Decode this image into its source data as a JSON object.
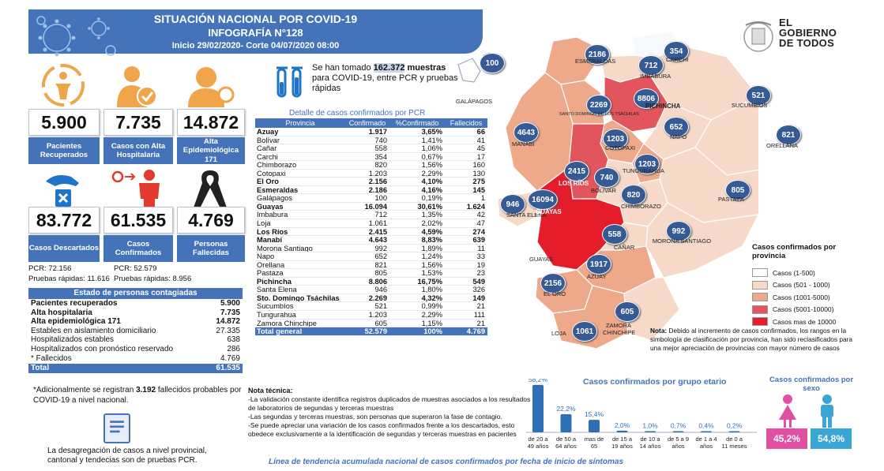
{
  "header": {
    "title": "SITUACIÓN NACIONAL POR  COVID-19",
    "subtitle": "INFOGRAFÍA N°128",
    "date_line": "Inicio 29/02/2020- Corte 04/07/2020 08:00"
  },
  "stats": {
    "recuperados": {
      "value": "5.900",
      "label": "Pacientes Recuperados"
    },
    "alta_hospitalaria": {
      "value": "7.735",
      "label": "Casos con Alta Hospitalaria"
    },
    "alta_epidemiologica": {
      "value": "14.872",
      "label": "Alta Epidemiológica",
      "extra": "171"
    },
    "descartados": {
      "value": "83.772",
      "label": "Casos Descartados"
    },
    "confirmados": {
      "value": "61.535",
      "label": "Casos Confirmados"
    },
    "fallecidos": {
      "value": "4.769",
      "label": "Personas Fallecidas"
    }
  },
  "pcr_lines": {
    "desc_pcr": "PCR: 72.156",
    "conf_pcr": "PCR: 52.579",
    "desc_rapidas": "Pruebas rápidas: 11.616",
    "conf_rapidas": "Pruebas rápidas: 8.956"
  },
  "estado": {
    "title": "Estado de personas contagiadas",
    "rows": [
      {
        "label": "Pacientes recuperados",
        "value": "5.900",
        "bold": true
      },
      {
        "label": "Alta hospitalaria",
        "value": "7.735",
        "bold": true
      },
      {
        "label": "Alta epidemiológica 171",
        "value": "14.872",
        "bold": true
      },
      {
        "label": "Estables en aislamiento domiciliario",
        "value": "27.335",
        "bold": false
      },
      {
        "label": "Hospitalizados estables",
        "value": "638",
        "bold": false
      },
      {
        "label": "Hospitalizados con pronóstico reservado",
        "value": "286",
        "bold": false
      },
      {
        "label": "* Fallecidos",
        "value": "4.769",
        "bold": false
      }
    ],
    "total_label": "Total",
    "total_value": "61.535"
  },
  "note_fallecidos": {
    "pre": "*Adicionalmente se registran ",
    "num": "3.192",
    "post": " fallecidos probables por COVID-19 a nivel nacional."
  },
  "desagregacion": "La desagregación de casos a nivel provincial, cantonal y tendecias son  de pruebas PCR.",
  "samples": {
    "pre": "Se han tomado ",
    "num": "162.372",
    "bold2": "muestras",
    "post": " para COVID-19, entre PCR y pruebas rápidas"
  },
  "pcr_table": {
    "title": "Detalle de casos confirmados por PCR",
    "headers": [
      "Provincia",
      "Confirmado",
      "%Confirmado",
      "Fallecidos"
    ],
    "rows": [
      [
        "Azuay",
        "1.917",
        "3,65%",
        "66",
        true
      ],
      [
        "Bolívar",
        "740",
        "1,41%",
        "41",
        false
      ],
      [
        "Cañar",
        "558",
        "1,06%",
        "45",
        false
      ],
      [
        "Carchi",
        "354",
        "0,67%",
        "17",
        false
      ],
      [
        "Chimborazo",
        "820",
        "1,56%",
        "160",
        false
      ],
      [
        "Cotopaxi",
        "1.203",
        "2,29%",
        "130",
        false
      ],
      [
        "El Oro",
        "2.156",
        "4,10%",
        "275",
        true
      ],
      [
        "Esmeraldas",
        "2.186",
        "4,16%",
        "145",
        true
      ],
      [
        "Galápagos",
        "100",
        "0,19%",
        "1",
        false
      ],
      [
        "Guayas",
        "16.094",
        "30,61%",
        "1.624",
        true
      ],
      [
        "Imbabura",
        "712",
        "1,35%",
        "42",
        false
      ],
      [
        "Loja",
        "1.061",
        "2,02%",
        "47",
        false
      ],
      [
        "Los Ríos",
        "2.415",
        "4,59%",
        "274",
        true
      ],
      [
        "Manabí",
        "4.643",
        "8,83%",
        "639",
        true
      ],
      [
        "Morona Santiago",
        "992",
        "1,89%",
        "11",
        false
      ],
      [
        "Napo",
        "652",
        "1,24%",
        "33",
        false
      ],
      [
        "Orellana",
        "821",
        "1,56%",
        "19",
        false
      ],
      [
        "Pastaza",
        "805",
        "1,53%",
        "23",
        false
      ],
      [
        "Pichincha",
        "8.806",
        "16,75%",
        "549",
        true
      ],
      [
        "Santa Elena",
        "946",
        "1,80%",
        "326",
        false
      ],
      [
        "Sto. Domingo Tsáchilas",
        "2.269",
        "4,32%",
        "149",
        true
      ],
      [
        "Sucumbíos",
        "521",
        "0,99%",
        "21",
        false
      ],
      [
        "Tungurahua",
        "1.203",
        "2,29%",
        "111",
        false
      ],
      [
        "Zamora Chinchipe",
        "605",
        "1,15%",
        "21",
        false
      ]
    ],
    "total": [
      "Total general",
      "52.579",
      "100%",
      "4.769"
    ]
  },
  "nota_tecnica": {
    "title": "Nota técnica:",
    "lines": [
      "-La validación constante identifica registros duplicados de muestras asociados a los resultados de laboratorios de segundas y terceras muestras",
      "-Las segundas y terceras muestras, son personas que superaron la fase de contagio.",
      "-Se puede apreciar una variación de los casos confirmados frente a los descartados, esto obedece exclusivamente a la identificación de segundas y terceras muestras en pacientes"
    ]
  },
  "trend_title": "Línea de tendencia acumulada nacional de casos confirmados por fecha de inicio de síntomas",
  "map": {
    "bubbles": [
      {
        "id": "galapagos",
        "value": "100",
        "label": "GALÁPAGOS"
      },
      {
        "id": "esmeraldas",
        "value": "2186",
        "label": "ESMERALDAS"
      },
      {
        "id": "imbabura",
        "value": "712",
        "label": "IMBABURA"
      },
      {
        "id": "carchi",
        "value": "354",
        "label": "CARCHI"
      },
      {
        "id": "sucumbios",
        "value": "521",
        "label": "SUCUMBÍOS"
      },
      {
        "id": "sto-domingo",
        "value": "2269",
        "label": "SANTO DOMINGO DE LOS TSÁCHILAS"
      },
      {
        "id": "pichincha",
        "value": "8806",
        "label": "PICHINCHA"
      },
      {
        "id": "napo",
        "value": "652",
        "label": "NAPO"
      },
      {
        "id": "orellana",
        "value": "821",
        "label": "ORELLANA"
      },
      {
        "id": "manabi",
        "value": "4643",
        "label": "MANABÍ"
      },
      {
        "id": "cotopaxi",
        "value": "1203",
        "label": "COTOPAXI"
      },
      {
        "id": "tungurahua",
        "value": "1203",
        "label": "TUNGURAHUA"
      },
      {
        "id": "los-rios",
        "value": "2415",
        "label": "LOS RÍOS"
      },
      {
        "id": "bolivar",
        "value": "740",
        "label": "BOLÍVAR"
      },
      {
        "id": "chimborazo",
        "value": "820",
        "label": "CHIMBORAZO"
      },
      {
        "id": "pastaza",
        "value": "805",
        "label": "PASTAZA"
      },
      {
        "id": "santa-elena",
        "value": "946",
        "label": "SANTA ELENA"
      },
      {
        "id": "guayas",
        "value": "16094",
        "label": "GUAYAS"
      },
      {
        "id": "canar",
        "value": "558",
        "label": "CAÑAR"
      },
      {
        "id": "morona",
        "value": "992",
        "label": "MORONA SANTIAGO"
      },
      {
        "id": "azuay",
        "value": "1917",
        "label": "AZUAY"
      },
      {
        "id": "el-oro",
        "value": "2156",
        "label": "EL ORO"
      },
      {
        "id": "loja",
        "value": "1061",
        "label": "LOJA"
      },
      {
        "id": "zamora",
        "value": "605",
        "label": "ZAMORA CHINCHIPE"
      }
    ],
    "guayas_lower_label": "GUAYAS"
  },
  "logo": {
    "lines": [
      "EL",
      "GOBIERNO",
      "DE TODOS"
    ]
  },
  "legend": {
    "title": "Casos confirmados por provincia",
    "items": [
      {
        "label": "Casos (1-500)",
        "color": "#ffffff"
      },
      {
        "label": "Casos (501 - 1000)",
        "color": "#f6d9c8"
      },
      {
        "label": "Casos (1001-5000)",
        "color": "#eea98a"
      },
      {
        "label": "Casos (5001-10000)",
        "color": "#e2555c"
      },
      {
        "label": "Casos mas de 10000",
        "color": "#e51d2a"
      }
    ]
  },
  "map_note": {
    "bold": "Nota:",
    "text": " Debido al incremento de casos confirmados, los rangos en la simbología de clasificación por provincia, han sido reclasificados para una mejor apreciación de provincias con mayor número de casos"
  },
  "chart_data": [
    {
      "type": "bar",
      "title": "Casos confirmados por grupo etario",
      "categories": [
        "de 20 a 49 años",
        "de 50 a 64 años",
        "mas de 65",
        "de 15 a 19 años",
        "de 10 a 14 años",
        "de 5 a 9 años",
        "de 1 a 4 años",
        "de 0 a 11 meses"
      ],
      "values": [
        58.2,
        22.2,
        15.4,
        2.0,
        1.0,
        0.7,
        0.4,
        0.2
      ],
      "value_labels": [
        "58,2%",
        "22,2%",
        "15,4%",
        "2,0%",
        "1,0%",
        "0,7%",
        "0,4%",
        "0,2%"
      ]
    },
    {
      "type": "bar",
      "title": "Casos confirmados por sexo",
      "categories": [
        "Mujer",
        "Hombre"
      ],
      "values": [
        45.2,
        54.8
      ],
      "value_labels": [
        "45,2%",
        "54,8%"
      ]
    }
  ],
  "colors": {
    "brand": "#4473b9",
    "bubble": "#355a94",
    "female": "#e04fa2",
    "male": "#3aa6d6"
  }
}
